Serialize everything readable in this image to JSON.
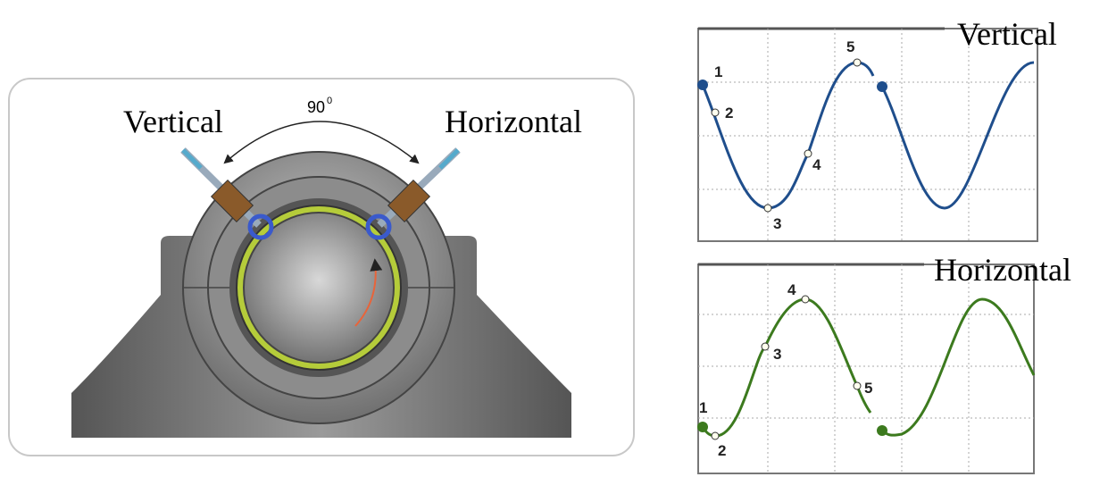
{
  "diagram": {
    "angle": {
      "value": "90",
      "superscript": "0"
    },
    "sensors": [
      {
        "label": "Vertical"
      },
      {
        "label": "Horizontal"
      }
    ]
  },
  "waveforms": [
    {
      "title": "Vertical",
      "points": [
        "1",
        "2",
        "3",
        "4",
        "5"
      ]
    },
    {
      "title": "Horizontal",
      "points": [
        "1",
        "2",
        "3",
        "4",
        "5"
      ]
    }
  ]
}
